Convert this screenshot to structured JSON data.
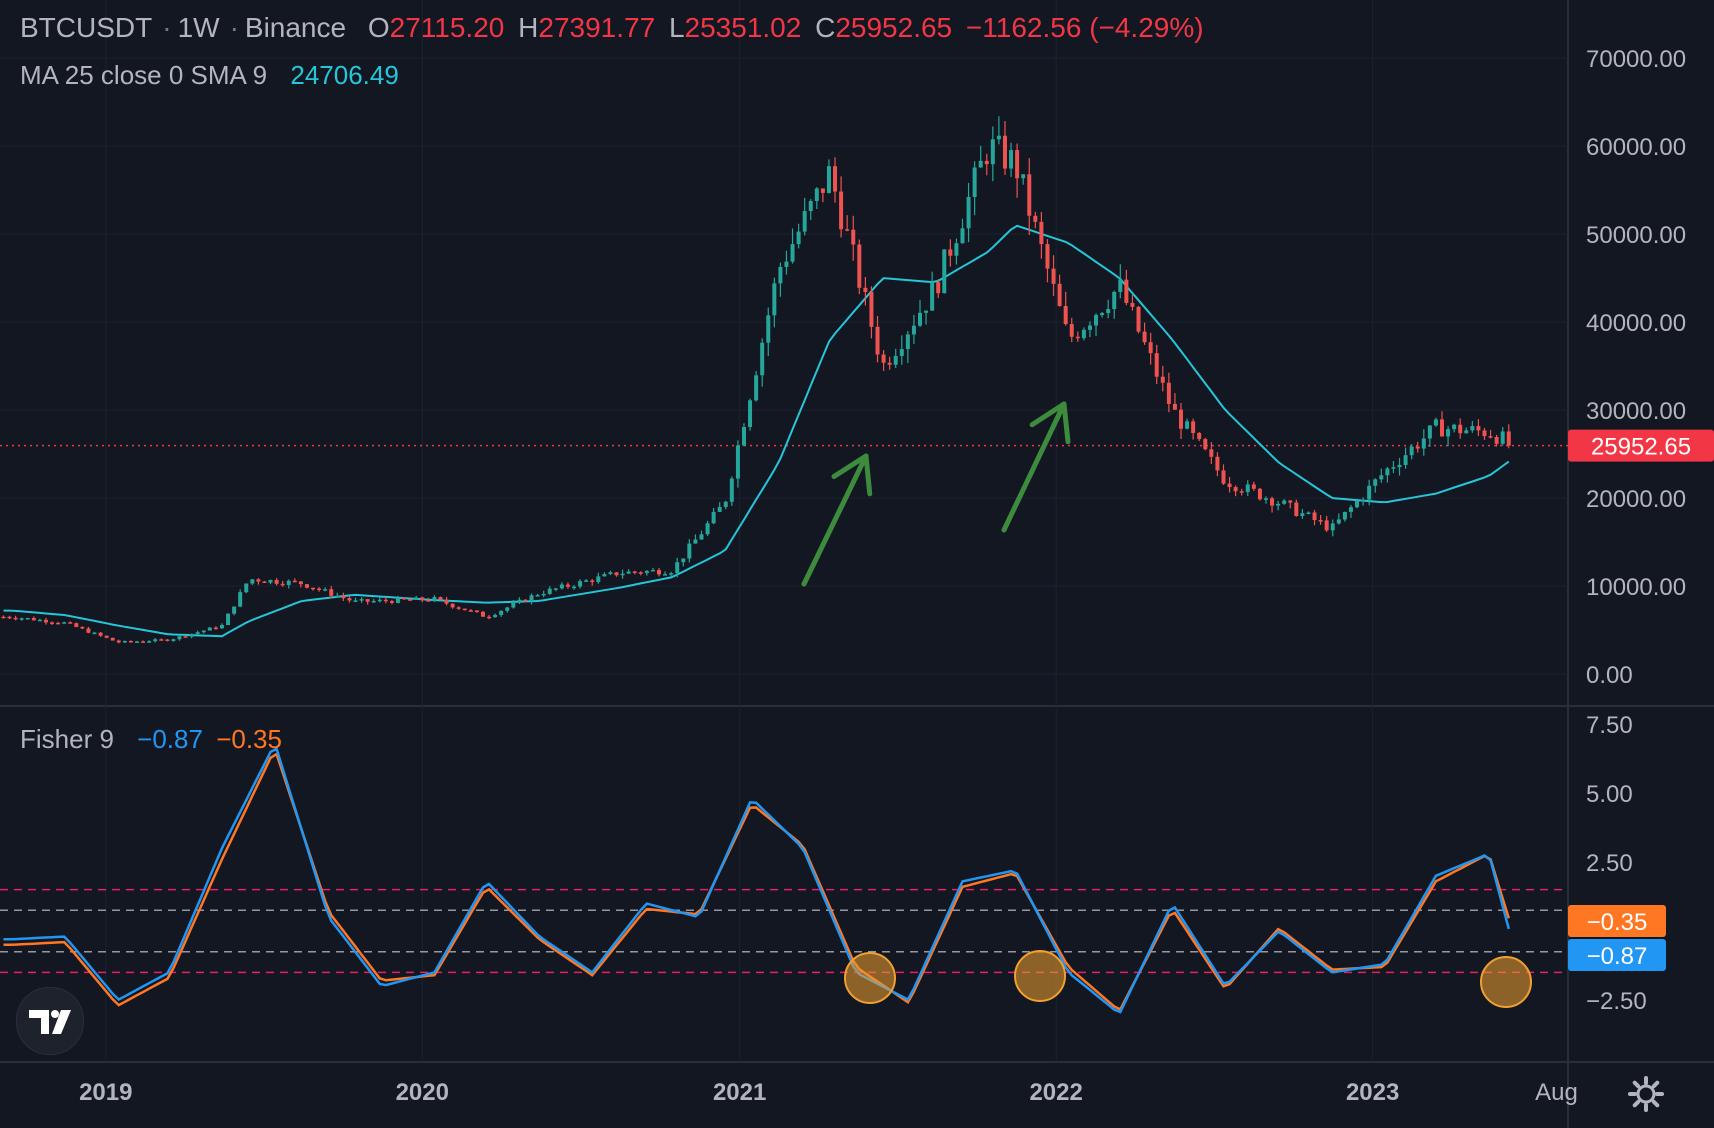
{
  "header": {
    "symbol": "BTCUSDT",
    "interval": "1W",
    "exchange": "Binance",
    "open_label": "O",
    "open": "27115.20",
    "high_label": "H",
    "high": "27391.77",
    "low_label": "L",
    "low": "25351.02",
    "close_label": "C",
    "close": "25952.65",
    "change": "−1162.56 (−4.29%)"
  },
  "ma_legend": {
    "label": "MA 25 close 0 SMA 9",
    "value": "24706.49"
  },
  "fisher_legend": {
    "label": "Fisher 9",
    "fisher": "−0.87",
    "trigger": "−0.35"
  },
  "colors": {
    "background": "#131722",
    "up": "#26a69a",
    "down": "#ef5350",
    "ma": "#26c6da",
    "fisher": "#2196f3",
    "trigger": "#ff7722",
    "arrow": "#3d8b3d",
    "circle": "#f0a030",
    "last_price": "#f23645"
  },
  "chart_data": [
    {
      "type": "candlestick",
      "pane": "price",
      "ylim": [
        0,
        70000
      ],
      "y_ticks": [
        "70000.00",
        "60000.00",
        "50000.00",
        "40000.00",
        "30000.00",
        "20000.00",
        "10000.00",
        "0.00"
      ],
      "x_ticks": [
        "2019",
        "2020",
        "2021",
        "2022",
        "2023",
        "Aug"
      ],
      "last_price_label": "25952.65",
      "last_price": 25952.65,
      "x": [
        "2018-09",
        "2018-11",
        "2019-01",
        "2019-03",
        "2019-05",
        "2019-06",
        "2019-08",
        "2019-10",
        "2020-01",
        "2020-03",
        "2020-05",
        "2020-08",
        "2020-10",
        "2020-12",
        "2021-02",
        "2021-04",
        "2021-06",
        "2021-08",
        "2021-10",
        "2021-11",
        "2022-01",
        "2022-03",
        "2022-05",
        "2022-07",
        "2022-09",
        "2022-11",
        "2023-01",
        "2023-03",
        "2023-05",
        "2023-06"
      ],
      "close": [
        6500,
        5800,
        3600,
        3900,
        5500,
        10800,
        10300,
        8200,
        8500,
        6500,
        9200,
        11500,
        11800,
        19500,
        46000,
        57000,
        35000,
        44000,
        60000,
        58000,
        38000,
        44000,
        30000,
        22000,
        19500,
        16500,
        23000,
        28000,
        27500,
        25952.65
      ],
      "ma25": [
        7200,
        6700,
        5500,
        4500,
        4300,
        6000,
        8300,
        9000,
        8400,
        8100,
        8300,
        9800,
        11000,
        14000,
        24000,
        38000,
        45000,
        44500,
        48000,
        51000,
        49000,
        45000,
        38000,
        30000,
        24000,
        20000,
        19500,
        20500,
        22500,
        24706.49
      ]
    },
    {
      "type": "line",
      "pane": "fisher",
      "name": "Fisher 9",
      "ylim": [
        -3.5,
        7.5
      ],
      "y_ticks": [
        "7.50",
        "5.00",
        "2.50",
        "−2.50"
      ],
      "levels": [
        1.5,
        0.75,
        -0.75,
        -1.5
      ],
      "last_fisher_label": "−0.87",
      "last_trigger_label": "−0.35",
      "x": [
        "2018-09",
        "2018-11",
        "2019-01",
        "2019-03",
        "2019-05",
        "2019-07",
        "2019-09",
        "2019-11",
        "2020-01",
        "2020-03",
        "2020-05",
        "2020-07",
        "2020-09",
        "2020-11",
        "2021-01",
        "2021-03",
        "2021-05",
        "2021-07",
        "2021-09",
        "2021-11",
        "2022-01",
        "2022-03",
        "2022-05",
        "2022-07",
        "2022-09",
        "2022-11",
        "2023-01",
        "2023-03",
        "2023-05",
        "2023-06"
      ],
      "fisher": [
        -0.3,
        -0.2,
        -2.5,
        -1.5,
        3.0,
        6.8,
        0.5,
        -2.0,
        -1.5,
        1.8,
        -0.2,
        -1.5,
        1.0,
        0.5,
        4.8,
        3.0,
        -1.5,
        -2.5,
        1.8,
        2.2,
        -1.5,
        -3.0,
        1.0,
        -2.0,
        0.0,
        -1.5,
        -1.2,
        2.0,
        2.8,
        -0.87
      ],
      "trigger": [
        -0.5,
        -0.4,
        -2.7,
        -1.7,
        2.6,
        6.6,
        0.7,
        -1.8,
        -1.6,
        1.6,
        -0.3,
        -1.6,
        0.8,
        0.6,
        4.6,
        3.1,
        -1.3,
        -2.6,
        1.6,
        2.1,
        -1.3,
        -2.9,
        0.8,
        -2.1,
        0.1,
        -1.4,
        -1.3,
        1.8,
        2.8,
        -0.35
      ]
    }
  ]
}
